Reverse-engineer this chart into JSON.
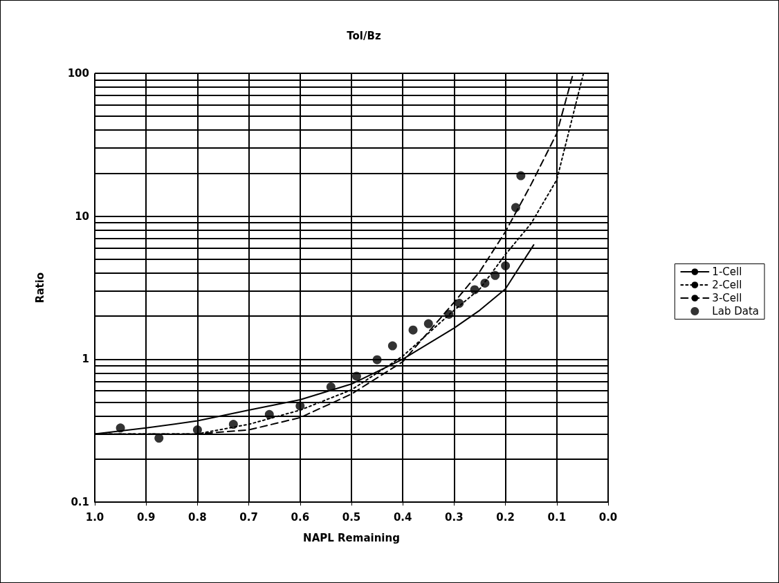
{
  "chart_data": {
    "type": "line",
    "title": "Tol/Bz",
    "xlabel": "NAPL Remaining",
    "ylabel": "Ratio",
    "xlim": [
      1,
      0
    ],
    "xticks": [
      {
        "value": 1,
        "label": "1.0"
      },
      0.9,
      0.8,
      0.7,
      0.6,
      0.5,
      0.4,
      0.3,
      0.2,
      0.1,
      {
        "value": 0,
        "label": "0.0"
      }
    ],
    "ylim": [
      0.1,
      100
    ],
    "yticks": [
      0.1,
      1,
      10,
      100
    ],
    "log": "y",
    "grid": true,
    "legend": "right",
    "series": [
      {
        "name": "1-Cell",
        "color": "#000000",
        "line_style": "solid",
        "marker": "none",
        "x": [
          1.0,
          0.9,
          0.8,
          0.7,
          0.6,
          0.5,
          0.4,
          0.3,
          0.25,
          0.2,
          0.145
        ],
        "values": [
          0.3,
          0.33,
          0.37,
          0.44,
          0.52,
          0.67,
          1.0,
          1.65,
          2.2,
          3.1,
          6.3
        ]
      },
      {
        "name": "2-Cell",
        "color": "#000000",
        "line_style": "dotted",
        "marker": "none",
        "x": [
          1.0,
          0.9,
          0.8,
          0.7,
          0.6,
          0.5,
          0.4,
          0.3,
          0.25,
          0.2,
          0.15,
          0.1,
          0.048
        ],
        "values": [
          0.3,
          0.3,
          0.3,
          0.35,
          0.44,
          0.61,
          1.05,
          2.2,
          3.1,
          5.4,
          8.9,
          18,
          100
        ]
      },
      {
        "name": "3-Cell",
        "color": "#000000",
        "line_style": "dashed",
        "marker": "none",
        "x": [
          1.0,
          0.9,
          0.8,
          0.7,
          0.6,
          0.5,
          0.4,
          0.3,
          0.25,
          0.2,
          0.15,
          0.1,
          0.068
        ],
        "values": [
          0.3,
          0.3,
          0.3,
          0.32,
          0.39,
          0.57,
          0.96,
          2.5,
          4.1,
          7.8,
          16.7,
          38,
          100
        ]
      },
      {
        "name": "Lab Data",
        "type": "scatter",
        "color": "#000000",
        "marker": "circle",
        "x": [
          0.95,
          0.875,
          0.8,
          0.73,
          0.66,
          0.6,
          0.54,
          0.49,
          0.45,
          0.42,
          0.38,
          0.35,
          0.31,
          0.29,
          0.26,
          0.24,
          0.22,
          0.2,
          0.18,
          0.17
        ],
        "values": [
          0.33,
          0.28,
          0.32,
          0.35,
          0.41,
          0.47,
          0.64,
          0.76,
          0.99,
          1.24,
          1.6,
          1.77,
          2.06,
          2.46,
          3.06,
          3.4,
          3.85,
          4.5,
          11.5,
          19.2
        ]
      }
    ]
  }
}
